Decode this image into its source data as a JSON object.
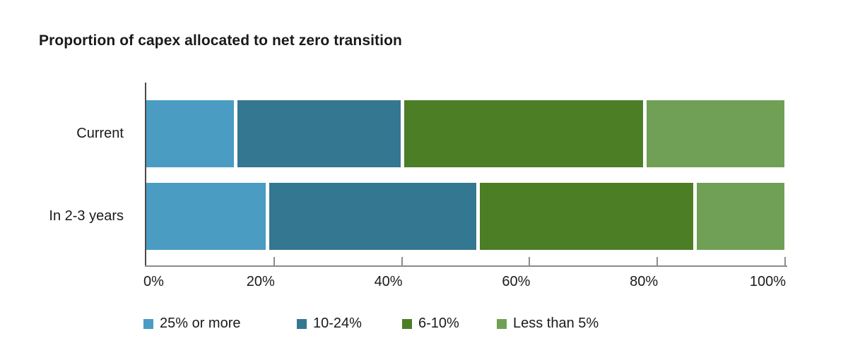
{
  "title": "Proportion of capex allocated to net zero transition",
  "chart_data": {
    "type": "bar",
    "orientation": "horizontal",
    "stacked": true,
    "title": "Proportion of capex allocated to net zero transition",
    "categories": [
      "Current",
      "In 2-3 years"
    ],
    "series": [
      {
        "name": "25% or more",
        "color": "#4A9CC3",
        "values": [
          14,
          19
        ]
      },
      {
        "name": "10-24%",
        "color": "#347791",
        "values": [
          26,
          33
        ]
      },
      {
        "name": "6-10%",
        "color": "#4C7E26",
        "values": [
          38,
          34
        ]
      },
      {
        "name": "Less than 5%",
        "color": "#70A056",
        "values": [
          22,
          14
        ]
      }
    ],
    "x_tick_labels": [
      "0%",
      "20%",
      "40%",
      "60%",
      "80%",
      "100%"
    ],
    "x_tick_values": [
      0,
      20,
      40,
      60,
      80,
      100
    ],
    "xlim": [
      0,
      100
    ],
    "unit": "%",
    "grid": false,
    "legend_position": "bottom"
  },
  "style_colors": {
    "axis_line": "#8C8C8C",
    "baseline": "#4A4A4A",
    "text": "#1A1A1A",
    "background": "#FFFFFF"
  }
}
